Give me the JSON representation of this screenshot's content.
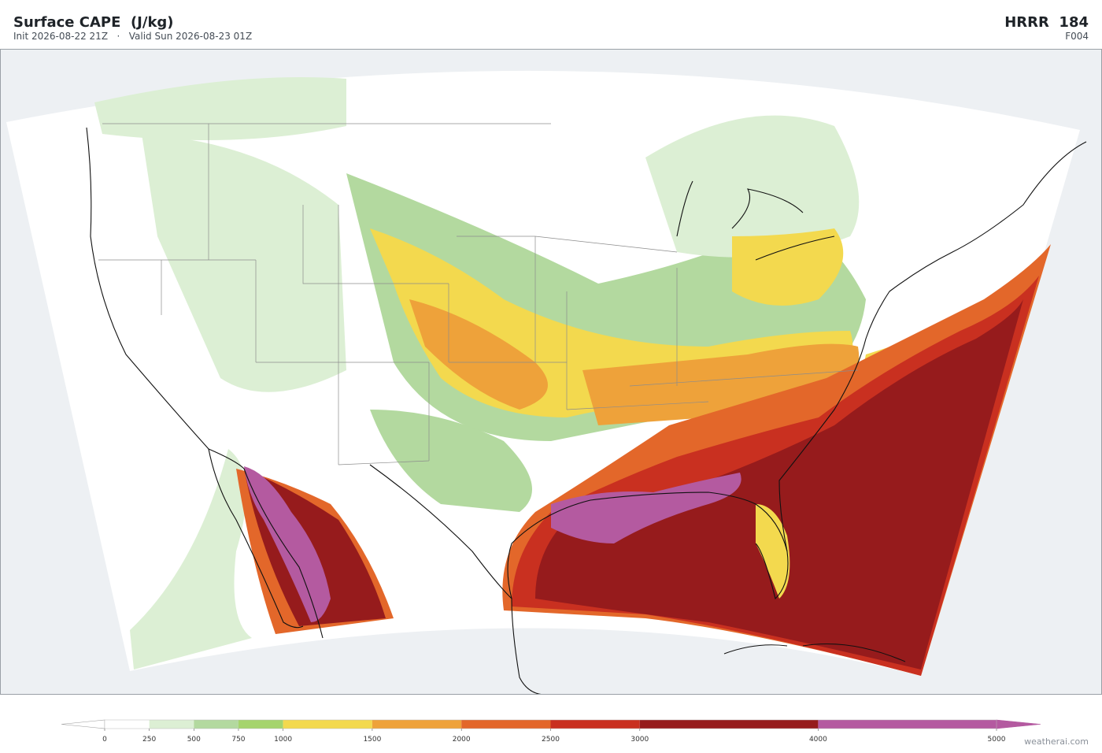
{
  "header": {
    "title": "Surface CAPE  (J/kg)",
    "subtitle": "Init 2026-08-22 21Z   ·   Valid Sun 2026-08-23 01Z",
    "model": "HRRR  184",
    "forecast_hour": "F004"
  },
  "colorbar": {
    "ticks": [
      0,
      250,
      500,
      750,
      1000,
      1500,
      2000,
      2500,
      3000,
      4000,
      5000
    ],
    "colors": [
      "#ffffff",
      "#dcefd4",
      "#b3d99f",
      "#a5d46d",
      "#f3d94e",
      "#eea23a",
      "#e3672a",
      "#c93020",
      "#961b1c",
      "#b45aa0"
    ],
    "under_color": "#ffffff",
    "over_color": "#b45aa0"
  },
  "footer": {
    "credit": "weatherai.com"
  }
}
